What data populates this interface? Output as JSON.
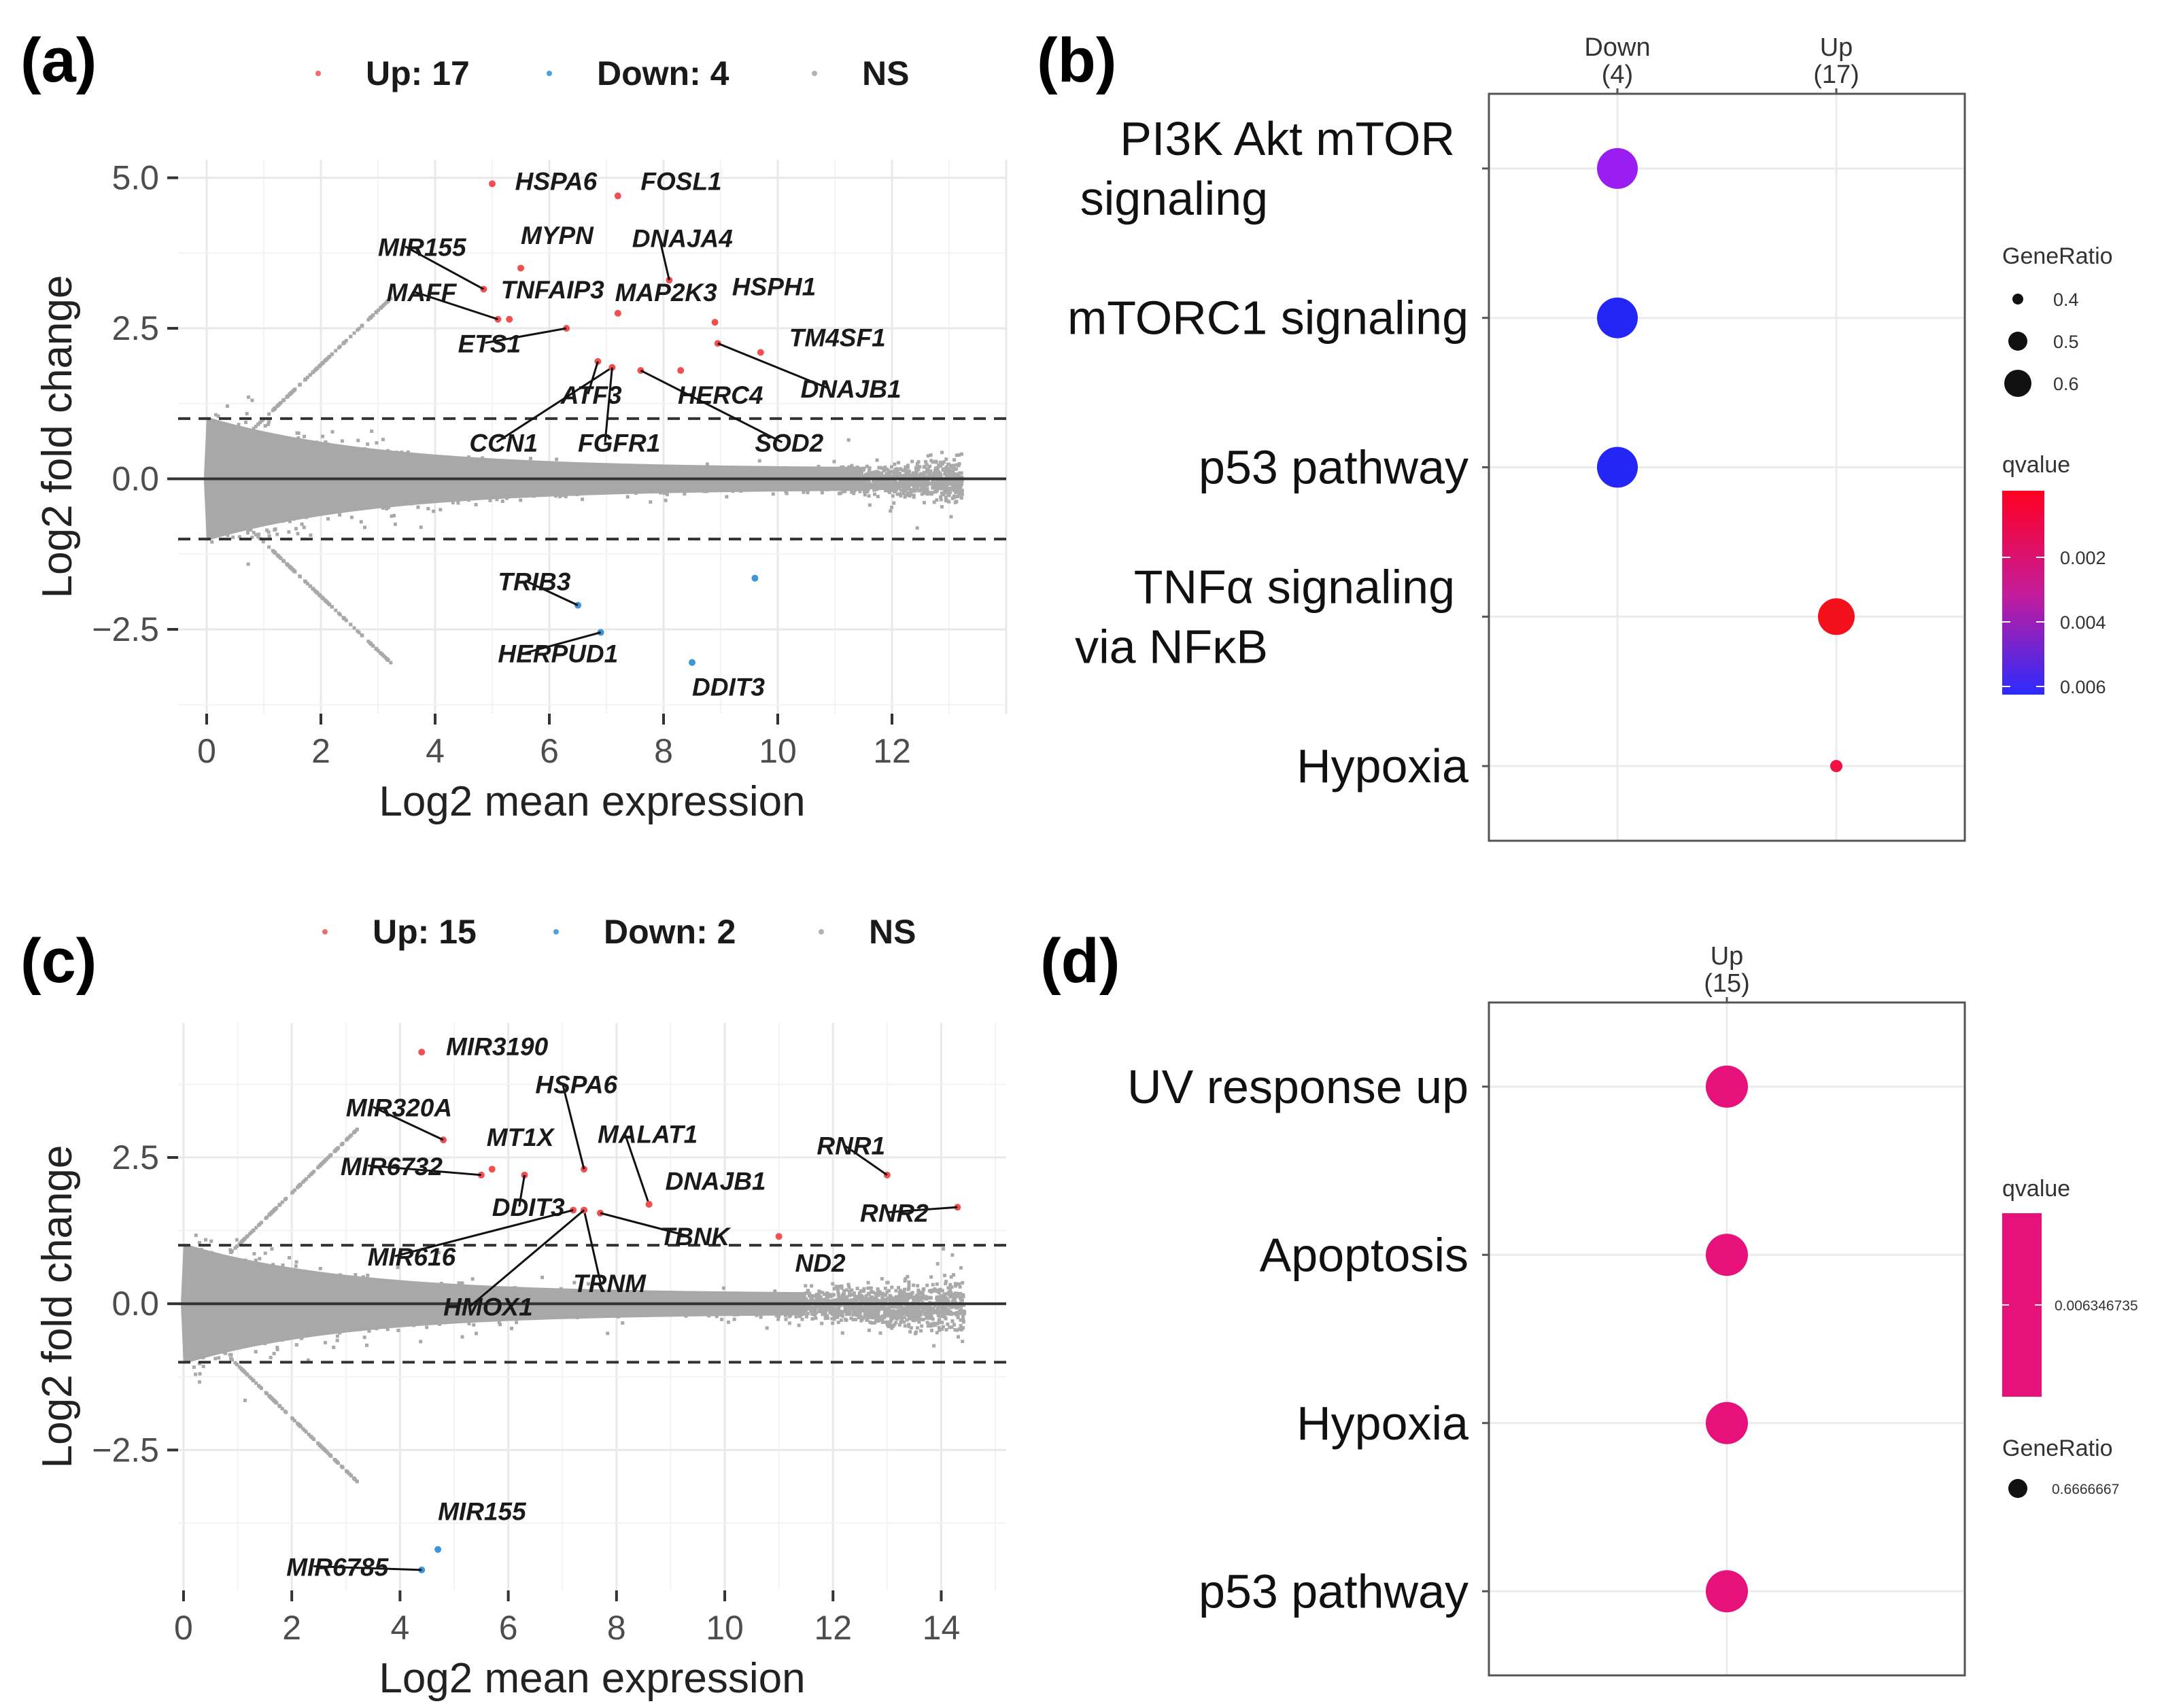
{
  "chart_data": [
    {
      "panel": "(a)",
      "type": "scatter",
      "subtype": "MA plot",
      "xlabel": "Log2 mean expression",
      "ylabel": "Log2 fold change",
      "xlim": [
        -0.5,
        14
      ],
      "ylim": [
        -3.9,
        5.3
      ],
      "xticks": [
        0,
        2,
        4,
        6,
        8,
        10,
        12
      ],
      "yticks": [
        -2.5,
        0.0,
        2.5,
        5.0
      ],
      "ytick_labels": [
        "−2.5",
        "0.0",
        "2.5",
        "5.0"
      ],
      "threshold_lines": [
        1,
        -1
      ],
      "zero_line": 0,
      "legend": [
        {
          "label": "Up: 17",
          "color": "#f26b6b"
        },
        {
          "label": "Down: 4",
          "color": "#4aa3df"
        },
        {
          "label": "NS",
          "color": "#b3b3b3"
        }
      ],
      "up": [
        {
          "gene": "HSPA6",
          "x": 5.0,
          "y": 4.9,
          "lx": 5.4,
          "ly": 4.8
        },
        {
          "gene": "FOSL1",
          "x": 7.2,
          "y": 4.7,
          "lx": 7.6,
          "ly": 4.8
        },
        {
          "gene": "MIR155",
          "x": 4.85,
          "y": 3.15,
          "lx": 3.0,
          "ly": 3.7
        },
        {
          "gene": "MYPN",
          "x": 5.5,
          "y": 3.5,
          "lx": 5.5,
          "ly": 3.9
        },
        {
          "gene": "DNAJA4",
          "x": 8.1,
          "y": 3.3,
          "lx": 7.45,
          "ly": 3.85
        },
        {
          "gene": "MAFF",
          "x": 5.1,
          "y": 2.65,
          "lx": 3.15,
          "ly": 2.95
        },
        {
          "gene": "TNFAIP3",
          "x": 5.3,
          "y": 2.65,
          "lx": 5.15,
          "ly": 3.0
        },
        {
          "gene": "MAP2K3",
          "x": 7.2,
          "y": 2.75,
          "lx": 7.15,
          "ly": 2.95
        },
        {
          "gene": "HSPH1",
          "x": 8.9,
          "y": 2.6,
          "lx": 9.2,
          "ly": 3.05
        },
        {
          "gene": "ETS1",
          "x": 6.3,
          "y": 2.5,
          "lx": 4.4,
          "ly": 2.1
        },
        {
          "gene": "TM4SF1",
          "x": 9.7,
          "y": 2.1,
          "lx": 10.2,
          "ly": 2.2
        },
        {
          "gene": "ATF3",
          "x": 6.85,
          "y": 1.95,
          "lx": 6.2,
          "ly": 1.25
        },
        {
          "gene": "HERC4",
          "x": 8.3,
          "y": 1.8,
          "lx": 8.25,
          "ly": 1.25
        },
        {
          "gene": "DNAJB1",
          "x": 8.95,
          "y": 2.25,
          "lx": 10.4,
          "ly": 1.35
        },
        {
          "gene": "CCN1",
          "x": 7.1,
          "y": 1.85,
          "lx": 4.6,
          "ly": 0.45
        },
        {
          "gene": "FGFR1",
          "x": 7.1,
          "y": 1.85,
          "lx": 6.5,
          "ly": 0.45
        },
        {
          "gene": "SOD2",
          "x": 7.6,
          "y": 1.8,
          "lx": 9.6,
          "ly": 0.45
        }
      ],
      "down": [
        {
          "gene": "TRIB3",
          "x": 6.5,
          "y": -2.1,
          "lx": 5.1,
          "ly": -1.85
        },
        {
          "gene": "HERPUD1",
          "x": 6.9,
          "y": -2.55,
          "lx": 5.1,
          "ly": -3.05
        },
        {
          "gene": "DDIT3",
          "x": 8.5,
          "y": -3.05,
          "lx": 8.5,
          "ly": -3.6
        },
        {
          "gene": "unlabeled",
          "x": 9.6,
          "y": -1.65
        }
      ]
    },
    {
      "panel": "(b)",
      "type": "scatter",
      "subtype": "dot plot",
      "columns": [
        {
          "name": "Down",
          "count": "(4)"
        },
        {
          "name": "Up",
          "count": "(17)"
        }
      ],
      "rows": [
        "PI3K Akt mTOR signaling",
        "mTORC1 signaling",
        "p53 pathway",
        "TNFα signaling via NFκB",
        "Hypoxia"
      ],
      "row_labels": [
        [
          "PI3K Akt mTOR",
          "signaling"
        ],
        [
          "mTORC1 signaling"
        ],
        [
          "p53 pathway"
        ],
        [
          "TNFα signaling",
          "via NFκB"
        ],
        [
          "Hypoxia"
        ]
      ],
      "points": [
        {
          "row": 0,
          "col": 0,
          "gene_ratio": 0.65,
          "qvalue": 0.0045,
          "color": "#9b1ef0"
        },
        {
          "row": 1,
          "col": 0,
          "gene_ratio": 0.65,
          "qvalue": 0.0064,
          "color": "#2326f5"
        },
        {
          "row": 2,
          "col": 0,
          "gene_ratio": 0.65,
          "qvalue": 0.0064,
          "color": "#2326f5"
        },
        {
          "row": 3,
          "col": 1,
          "gene_ratio": 0.6,
          "qvalue": 0.0007,
          "color": "#f2101a"
        },
        {
          "row": 4,
          "col": 1,
          "gene_ratio": 0.3,
          "qvalue": 0.0012,
          "color": "#f01245"
        }
      ],
      "legend_generatio": {
        "title": "GeneRatio",
        "labels": [
          "0.4",
          "0.5",
          "0.6"
        ],
        "values": [
          0.4,
          0.5,
          0.6
        ]
      },
      "legend_qvalue": {
        "title": "qvalue",
        "labels": [
          "0.002",
          "0.004",
          "0.006"
        ],
        "values": [
          0.002,
          0.004,
          0.006
        ],
        "colors": [
          "#ff0022",
          "#c61b9a",
          "#2b2bff"
        ]
      }
    },
    {
      "panel": "(c)",
      "type": "scatter",
      "subtype": "MA plot",
      "xlabel": "Log2 mean expression",
      "ylabel": "Log2 fold change",
      "xlim": [
        -0.1,
        15.2
      ],
      "ylim": [
        -4.9,
        4.8
      ],
      "xticks": [
        0,
        2,
        4,
        6,
        8,
        10,
        12,
        14
      ],
      "yticks": [
        -2.5,
        0.0,
        2.5
      ],
      "ytick_labels": [
        "−2.5",
        "0.0",
        "2.5"
      ],
      "threshold_lines": [
        1,
        -1
      ],
      "zero_line": 0,
      "legend": [
        {
          "label": "Up: 15",
          "color": "#f26b6b"
        },
        {
          "label": "Down: 2",
          "color": "#4aa3df"
        },
        {
          "label": "NS",
          "color": "#b3b3b3"
        }
      ],
      "up": [
        {
          "gene": "MIR3190",
          "x": 4.4,
          "y": 4.3,
          "lx": 4.85,
          "ly": 4.25
        },
        {
          "gene": "MIR320A",
          "x": 4.8,
          "y": 2.8,
          "lx": 3.0,
          "ly": 3.2
        },
        {
          "gene": "HSPA6",
          "x": 7.4,
          "y": 2.3,
          "lx": 6.5,
          "ly": 3.6
        },
        {
          "gene": "MT1X",
          "x": 5.7,
          "y": 2.3,
          "lx": 5.6,
          "ly": 2.7
        },
        {
          "gene": "MALAT1",
          "x": 8.6,
          "y": 1.7,
          "lx": 7.65,
          "ly": 2.75
        },
        {
          "gene": "RNR1",
          "x": 13.0,
          "y": 2.2,
          "lx": 11.7,
          "ly": 2.55
        },
        {
          "gene": "MIR6732",
          "x": 5.5,
          "y": 2.2,
          "lx": 2.9,
          "ly": 2.2
        },
        {
          "gene": "DNAJB1",
          "x": 8.6,
          "y": 1.7,
          "lx": 8.9,
          "ly": 1.95
        },
        {
          "gene": "RNR2",
          "x": 14.3,
          "y": 1.65,
          "lx": 12.5,
          "ly": 1.4
        },
        {
          "gene": "DDIT3",
          "x": 6.3,
          "y": 2.2,
          "lx": 5.7,
          "ly": 1.5
        },
        {
          "gene": "TBNK",
          "x": 7.7,
          "y": 1.55,
          "lx": 8.8,
          "ly": 1.0
        },
        {
          "gene": "ND2",
          "x": 11.0,
          "y": 1.15,
          "lx": 11.3,
          "ly": 0.55
        },
        {
          "gene": "MIR616",
          "x": 7.2,
          "y": 1.6,
          "lx": 3.4,
          "ly": 0.65
        },
        {
          "gene": "TRNM",
          "x": 7.4,
          "y": 1.6,
          "lx": 7.2,
          "ly": 0.2
        },
        {
          "gene": "HMOX1",
          "x": 7.4,
          "y": 1.6,
          "lx": 4.8,
          "ly": -0.2
        }
      ],
      "down": [
        {
          "gene": "MIR155",
          "x": 4.7,
          "y": -4.2,
          "lx": 4.7,
          "ly": -3.7
        },
        {
          "gene": "MIR6785",
          "x": 4.4,
          "y": -4.55,
          "lx": 1.9,
          "ly": -4.65
        }
      ]
    },
    {
      "panel": "(d)",
      "type": "scatter",
      "subtype": "dot plot",
      "columns": [
        {
          "name": "Up",
          "count": "(15)"
        }
      ],
      "rows": [
        "UV response up",
        "Apoptosis",
        "Hypoxia",
        "p53 pathway"
      ],
      "row_labels": [
        [
          "UV response up"
        ],
        [
          "Apoptosis"
        ],
        [
          "Hypoxia"
        ],
        [
          "p53 pathway"
        ]
      ],
      "points": [
        {
          "row": 0,
          "col": 0,
          "gene_ratio": 0.6666667,
          "qvalue": 0.006346735,
          "color": "#e6117a"
        },
        {
          "row": 1,
          "col": 0,
          "gene_ratio": 0.6666667,
          "qvalue": 0.006346735,
          "color": "#e6117a"
        },
        {
          "row": 2,
          "col": 0,
          "gene_ratio": 0.6666667,
          "qvalue": 0.006346735,
          "color": "#e6117a"
        },
        {
          "row": 3,
          "col": 0,
          "gene_ratio": 0.6666667,
          "qvalue": 0.006346735,
          "color": "#e6117a"
        }
      ],
      "legend_qvalue": {
        "title": "qvalue",
        "labels": [
          "0.006346735"
        ],
        "color": "#e6117a"
      },
      "legend_generatio": {
        "title": "GeneRatio",
        "labels": [
          "0.6666667"
        ]
      }
    }
  ]
}
